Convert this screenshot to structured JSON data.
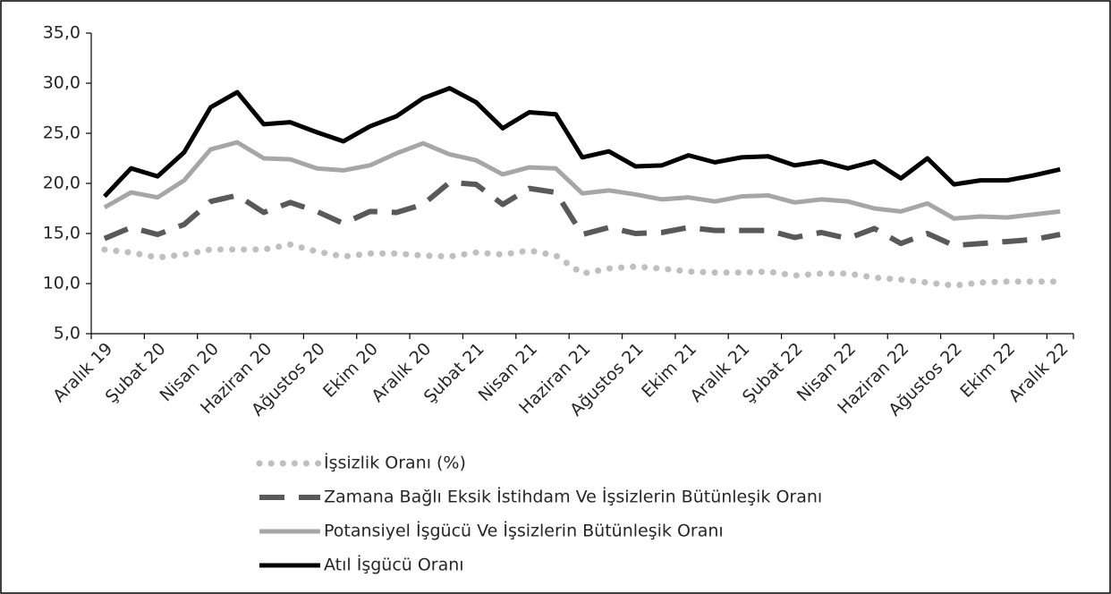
{
  "chart_data": {
    "type": "line",
    "categories": [
      "Aralık 19",
      null,
      "Şubat 20",
      null,
      "Nisan 20",
      null,
      "Haziran 20",
      null,
      "Ağustos 20",
      null,
      "Ekim 20",
      null,
      "Aralık 20",
      null,
      "Şubat 21",
      null,
      "Nisan 21",
      null,
      "Haziran 21",
      null,
      "Ağustos 21",
      null,
      "Ekim 21",
      null,
      "Aralık 21",
      null,
      "Şubat 22",
      null,
      "Nisan 22",
      null,
      "Haziran 22",
      null,
      "Ağustos 22",
      null,
      "Ekim 22",
      null,
      "Aralık 22"
    ],
    "series": [
      {
        "name": "İşsizlik Oranı (%)",
        "color": "#bfbfbf",
        "style": "dotted",
        "values": [
          13.4,
          13.1,
          12.6,
          12.9,
          13.4,
          13.4,
          13.4,
          13.9,
          13.2,
          12.7,
          13.0,
          13.0,
          12.8,
          12.7,
          13.1,
          12.9,
          13.3,
          12.8,
          11.0,
          11.5,
          11.7,
          11.5,
          11.2,
          11.1,
          11.1,
          11.2,
          10.8,
          11.0,
          11.0,
          10.6,
          10.4,
          10.1,
          9.8,
          10.1,
          10.2,
          10.2,
          10.2
        ]
      },
      {
        "name": "Zamana Bağlı Eksik İstihdam Ve İşsizlerin Bütünleşik Oranı",
        "color": "#595959",
        "style": "dashed",
        "values": [
          14.5,
          15.6,
          14.9,
          15.9,
          18.2,
          18.8,
          17.1,
          18.1,
          17.2,
          16.0,
          17.2,
          17.1,
          17.9,
          20.1,
          19.9,
          17.9,
          19.5,
          19.1,
          14.9,
          15.6,
          15.0,
          15.1,
          15.6,
          15.3,
          15.3,
          15.3,
          14.6,
          15.1,
          14.5,
          15.5,
          14.0,
          15.0,
          13.8,
          14.0,
          14.2,
          14.4,
          14.9
        ]
      },
      {
        "name": "Potansiyel İşgücü Ve İşsizlerin Bütünleşik Oranı",
        "color": "#a6a6a6",
        "style": "solid",
        "values": [
          17.6,
          19.1,
          18.6,
          20.3,
          23.4,
          24.1,
          22.5,
          22.4,
          21.5,
          21.3,
          21.8,
          23.0,
          24.0,
          22.9,
          22.3,
          20.9,
          21.6,
          21.5,
          19.0,
          19.3,
          18.9,
          18.4,
          18.6,
          18.2,
          18.7,
          18.8,
          18.1,
          18.4,
          18.2,
          17.5,
          17.2,
          18.0,
          16.5,
          16.7,
          16.6,
          16.9,
          17.2
        ]
      },
      {
        "name": "Atıl İşgücü Oranı",
        "color": "#000000",
        "style": "solid",
        "values": [
          18.7,
          21.5,
          20.7,
          23.1,
          27.6,
          29.1,
          25.9,
          26.1,
          25.1,
          24.2,
          25.7,
          26.7,
          28.5,
          29.5,
          28.1,
          25.5,
          27.1,
          26.9,
          22.6,
          23.2,
          21.7,
          21.8,
          22.8,
          22.1,
          22.6,
          22.7,
          21.8,
          22.2,
          21.5,
          22.2,
          20.5,
          22.5,
          19.9,
          20.3,
          20.3,
          20.8,
          21.4
        ]
      }
    ],
    "ylim": [
      5,
      35
    ],
    "yticks": [
      {
        "value": 5,
        "label": "5,0"
      },
      {
        "value": 10,
        "label": "10,0"
      },
      {
        "value": 15,
        "label": "15,0"
      },
      {
        "value": 20,
        "label": "20,0"
      },
      {
        "value": 25,
        "label": "25,0"
      },
      {
        "value": 30,
        "label": "30,0"
      },
      {
        "value": 35,
        "label": "35,0"
      }
    ],
    "grid": false,
    "legend": "bottom"
  }
}
